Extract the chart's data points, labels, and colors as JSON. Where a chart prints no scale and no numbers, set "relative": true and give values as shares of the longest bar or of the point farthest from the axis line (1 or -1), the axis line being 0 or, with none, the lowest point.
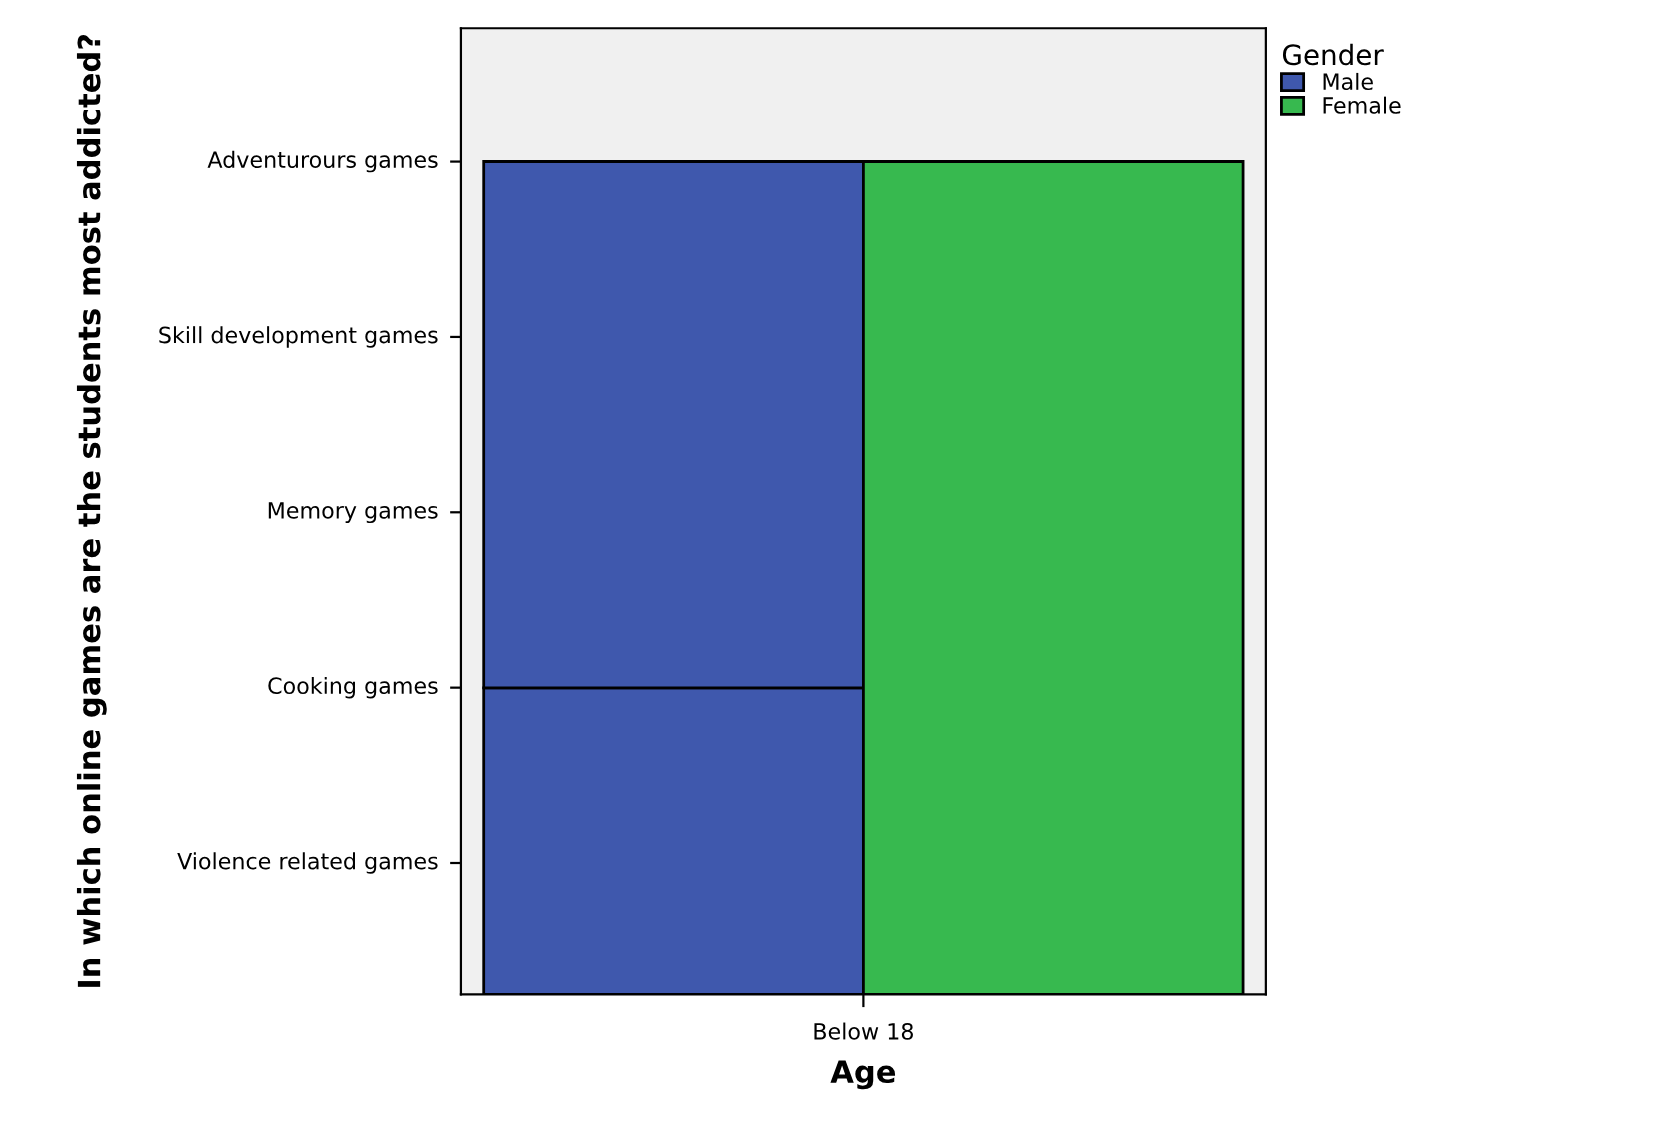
{
  "chart_data": {
    "type": "bar",
    "relative": true,
    "stacked": true,
    "xlabel": "Age",
    "legend_title": "Gender",
    "legend": "top right",
    "grid": false,
    "categories": [
      null,
      null
    ],
    "annotations": [
      "Below 18",
      "Violence related games",
      "Cooking games",
      "Memory games",
      "Skill development games",
      "Adventurours games",
      "In which online games are the students most addicted?"
    ],
    "series": [
      {
        "color": "#3f58ad",
        "values": [
          0.368,
          null
        ]
      },
      {
        "name": "Male",
        "color": "#3f58ad",
        "values": [
          0.632,
          null
        ]
      },
      {
        "name": "Female",
        "color": "#37b94f",
        "values": [
          null,
          1
        ]
      }
    ]
  }
}
